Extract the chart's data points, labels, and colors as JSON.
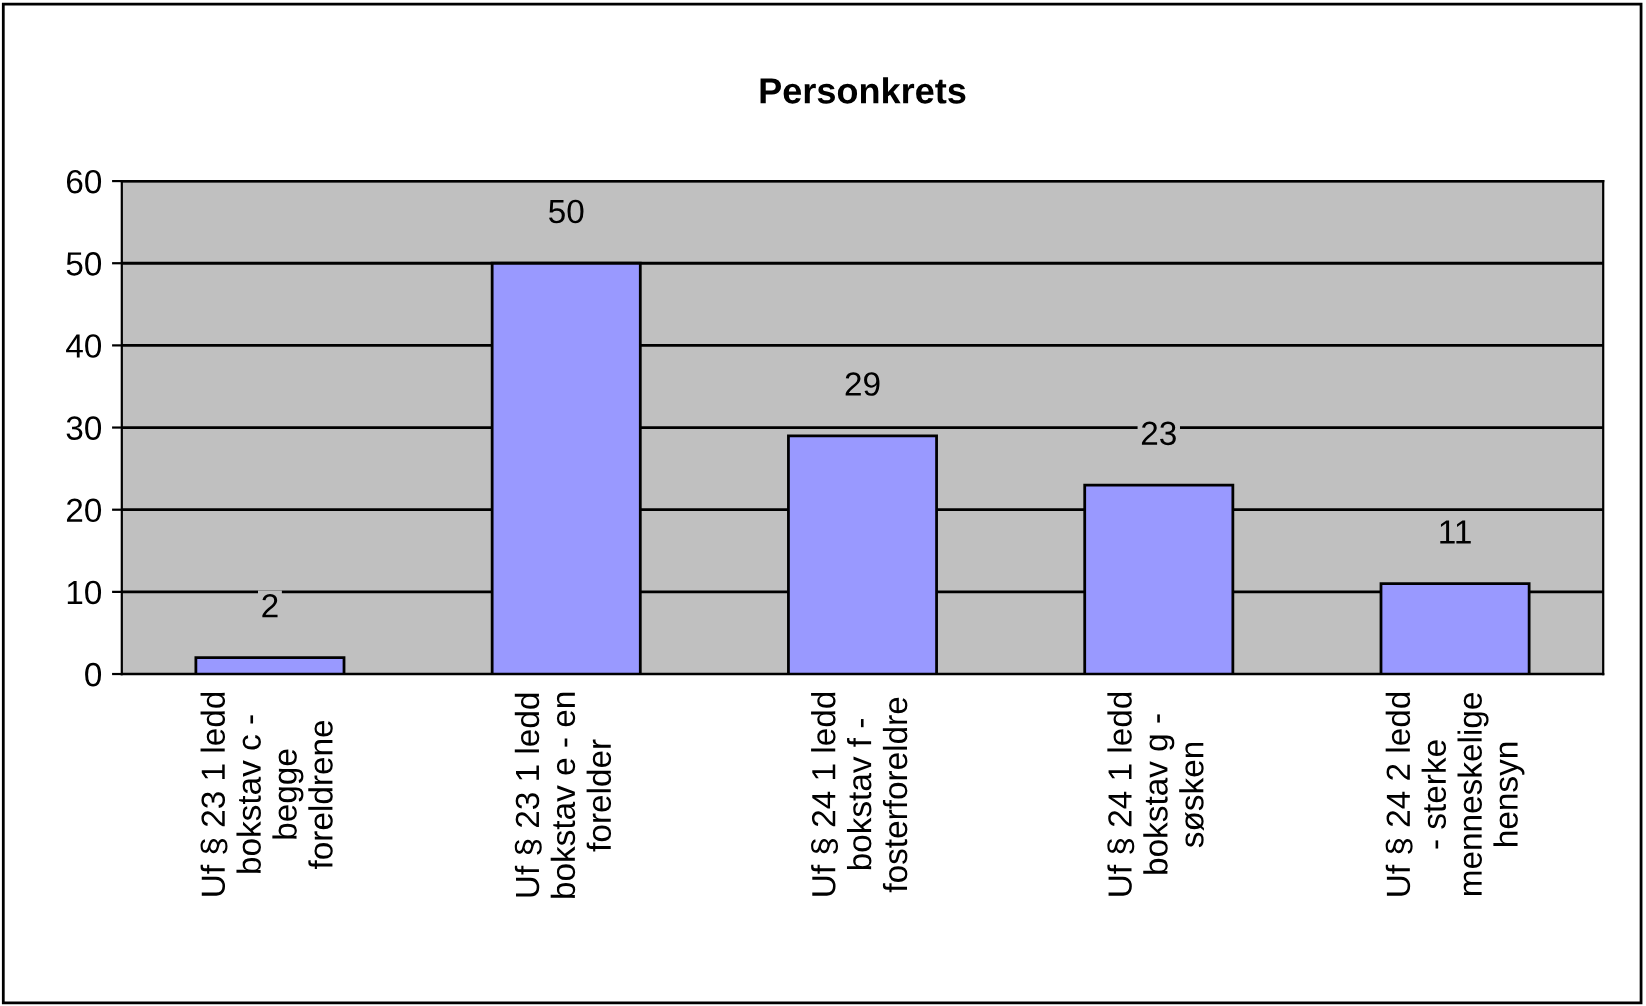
{
  "chart_data": {
    "type": "bar",
    "title": "Personkrets",
    "categories": [
      "Uf § 23 1 ledd\nbokstav c -\nbegge\nforeldrene",
      "Uf § 23 1 ledd\nbokstav e - en\nforelder",
      "Uf § 24 1 ledd\nbokstav f -\nfosterforeldre",
      "Uf § 24 1 ledd\nbokstav g -\nsøsken",
      "Uf § 24 2 ledd\n- sterke\nmenneskelige\nhensyn"
    ],
    "values": [
      2,
      50,
      29,
      23,
      11
    ],
    "color": "#9999ff",
    "data_labels": true,
    "ylim": [
      0,
      60
    ],
    "yticks": [
      0,
      10,
      20,
      30,
      40,
      50,
      60
    ],
    "grid": "y",
    "legend": false
  }
}
